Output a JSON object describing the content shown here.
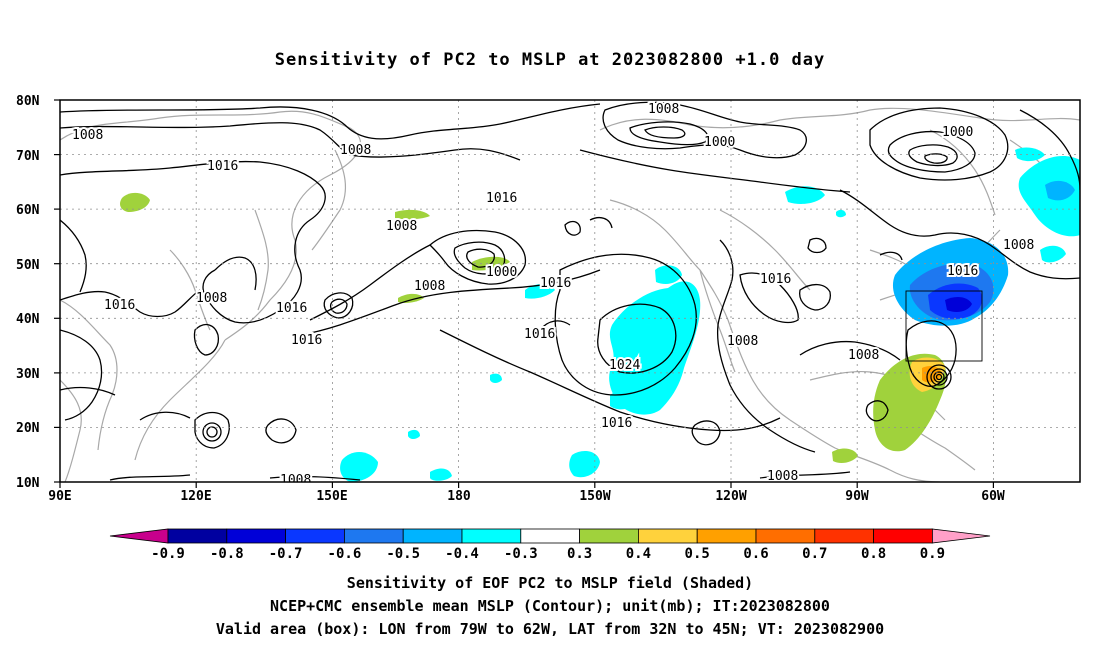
{
  "title": "Sensitivity of PC2 to MSLP at 2023082800 +1.0 day",
  "lat_labels": [
    "80N",
    "70N",
    "60N",
    "50N",
    "40N",
    "30N",
    "20N",
    "10N"
  ],
  "lon_labels": [
    "90E",
    "120E",
    "150E",
    "180",
    "150W",
    "120W",
    "90W",
    "60W"
  ],
  "contour_labels": [
    "1008",
    "1008",
    "1008",
    "1000",
    "1000",
    "1016",
    "1016",
    "1008",
    "1000",
    "1016",
    "1008",
    "1016",
    "1016",
    "1008",
    "1008",
    "1016",
    "1016",
    "1016",
    "1016",
    "1024",
    "1008",
    "1008",
    "1016",
    "1008",
    "1008"
  ],
  "colorbar": {
    "ticks": [
      "-0.9",
      "-0.8",
      "-0.7",
      "-0.6",
      "-0.5",
      "-0.4",
      "-0.3",
      "0.3",
      "0.4",
      "0.5",
      "0.6",
      "0.7",
      "0.8",
      "0.9"
    ],
    "colors": [
      "#0000a0",
      "#0000d8",
      "#0a37ff",
      "#1e78f0",
      "#00b4ff",
      "#00ffff",
      "#ffffff",
      "#a0d23c",
      "#ffd23c",
      "#ffa000",
      "#ff6e00",
      "#ff3200",
      "#ff0000"
    ],
    "low_end_color": "#c8008c",
    "high_end_color": "#ffa0c8"
  },
  "captions": [
    "Sensitivity of EOF PC2 to MSLP field (Shaded)",
    "NCEP+CMC ensemble mean MSLP (Contour); unit(mb); IT:2023082800",
    "Valid area (box): LON from 79W to 62W, LAT from 32N to 45N; VT: 2023082900"
  ]
}
